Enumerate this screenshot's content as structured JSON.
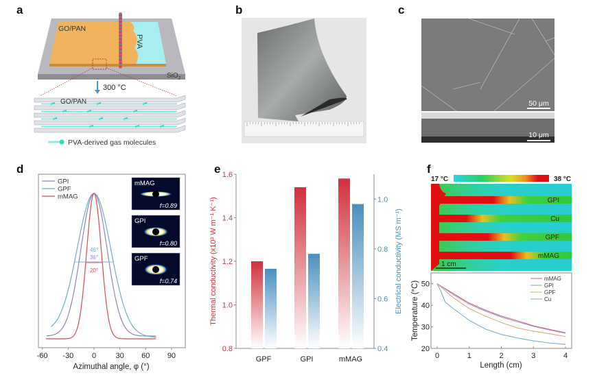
{
  "panels": {
    "a": {
      "label": "a",
      "layer_label": "GO/PAN",
      "pva_label": "PVA",
      "substrate_label": "SiO",
      "substrate_sub": "2",
      "temperature": "300 °C",
      "stack_label": "GO/PAN",
      "legend": "PVA-derived gas molecules"
    },
    "b": {
      "label": "b"
    },
    "c": {
      "label": "c",
      "scale_top": "50 μm",
      "scale_bottom": "10 μm"
    },
    "d": {
      "label": "d"
    },
    "e": {
      "label": "e"
    },
    "f": {
      "label": "f",
      "colorbar_min": "17 °C",
      "colorbar_max": "38 °C",
      "strip_labels": [
        "GPI",
        "Cu",
        "GPF",
        "mMAG"
      ],
      "scale_bar": "1 cm"
    }
  },
  "chart_data": [
    {
      "panel": "d",
      "type": "line",
      "xlabel": "Azimuthal angle, φ (°)",
      "xlim": [
        -60,
        90
      ],
      "xticks": [
        "-60",
        "-30",
        "0",
        "30",
        "60",
        "90"
      ],
      "series": [
        {
          "name": "GPI",
          "color": "#8a86b8",
          "fwhm_deg": 36,
          "fwhm_label": "36°",
          "x_range": [
            -55,
            72
          ]
        },
        {
          "name": "GPF",
          "color": "#6aaed0",
          "fwhm_deg": 46,
          "fwhm_label": "46°",
          "x_range": [
            -50,
            72
          ]
        },
        {
          "name": "mMAG",
          "color": "#e0474f",
          "fwhm_deg": 20,
          "fwhm_label": "20°",
          "x_range": [
            -56,
            72
          ]
        }
      ],
      "legend_placement": "top-left",
      "insets": [
        {
          "name": "mMAG",
          "f_label": "f=0.89"
        },
        {
          "name": "GPI",
          "f_label": "f=0.80"
        },
        {
          "name": "GPF",
          "f_label": "f=0.74"
        }
      ]
    },
    {
      "panel": "e",
      "type": "bar",
      "categories": [
        "GPF",
        "GPI",
        "mMAG"
      ],
      "series": [
        {
          "name": "Thermal conductivity",
          "axis": "left",
          "color": "#d1303b",
          "values": [
            1.2,
            1.54,
            1.58
          ]
        },
        {
          "name": "Electrical conductivity",
          "axis": "right",
          "color": "#4a8fbf",
          "values": [
            0.72,
            0.78,
            0.98
          ]
        }
      ],
      "ylabel_left": "Thermal conductivity (x10³ W m⁻¹ K⁻¹)",
      "ylabel_right": "Electrical conductivity (MS m⁻¹)",
      "ylim_left": [
        0.8,
        1.6
      ],
      "ylim_right": [
        0.4,
        1.1
      ],
      "yticks_left": [
        "0.8",
        "1.0",
        "1.2",
        "1.4",
        "1.6"
      ],
      "yticks_right": [
        "0.4",
        "0.6",
        "0.8",
        "1.0"
      ]
    },
    {
      "panel": "f",
      "type": "line",
      "xlabel": "Length (cm)",
      "ylabel": "Temperature (°C)",
      "xlim": [
        -0.2,
        4.2
      ],
      "ylim": [
        20,
        55
      ],
      "xticks": [
        "0",
        "1",
        "2",
        "3",
        "4"
      ],
      "yticks": [
        "20",
        "30",
        "40",
        "50"
      ],
      "legend_placement": "top-right",
      "series": [
        {
          "name": "mMAG",
          "color": "#d0606a",
          "x": [
            0,
            0.5,
            1,
            1.5,
            2,
            2.5,
            3,
            3.5,
            4
          ],
          "y": [
            50,
            45.5,
            41,
            37.8,
            35,
            32.8,
            30.5,
            28.8,
            27.3
          ]
        },
        {
          "name": "GPI",
          "color": "#9a9ad0",
          "x": [
            0,
            0.5,
            1,
            1.5,
            2,
            2.5,
            3,
            3.5,
            4
          ],
          "y": [
            50,
            45,
            40.5,
            37.3,
            34.5,
            32.3,
            30.2,
            28.5,
            27
          ]
        },
        {
          "name": "GPF",
          "color": "#e0a070",
          "x": [
            0,
            0.5,
            1,
            1.5,
            2,
            2.5,
            3,
            3.5,
            4
          ],
          "y": [
            50,
            43.5,
            38.5,
            35,
            32,
            29.5,
            28,
            26.8,
            25.5
          ]
        },
        {
          "name": "Cu",
          "color": "#6aa8d0",
          "x": [
            0,
            0.1,
            0.25,
            0.5,
            1,
            1.5,
            2,
            2.5,
            3,
            3.5,
            4
          ],
          "y": [
            50,
            47,
            41.5,
            38.5,
            33,
            29,
            26.5,
            24.8,
            23.5,
            22.5,
            21.8
          ]
        }
      ]
    }
  ]
}
